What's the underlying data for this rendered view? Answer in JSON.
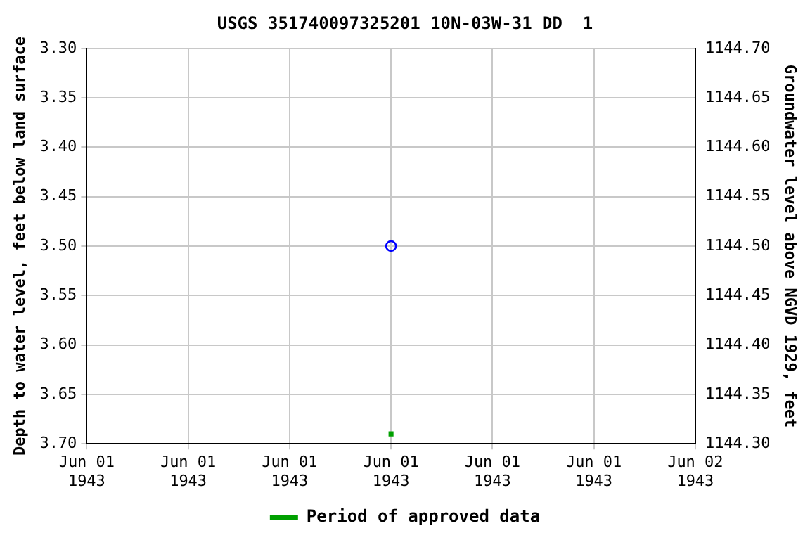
{
  "chart_data": {
    "type": "scatter",
    "title": "USGS 351740097325201 10N-03W-31 DD  1",
    "ylabel": "Depth to water level, feet below land surface",
    "y2label": "Groundwater level above NGVD 1929, feet",
    "xlim": [
      "1943-06-01T00:00",
      "1943-06-02T00:00"
    ],
    "xticks": [
      {
        "value": "1943-06-01T00:00",
        "label": "Jun 01 1943"
      },
      {
        "value": "1943-06-01T04:00",
        "label": "Jun 01 1943"
      },
      {
        "value": "1943-06-01T08:00",
        "label": "Jun 01 1943"
      },
      {
        "value": "1943-06-01T12:00",
        "label": "Jun 01 1943"
      },
      {
        "value": "1943-06-01T16:00",
        "label": "Jun 01 1943"
      },
      {
        "value": "1943-06-01T20:00",
        "label": "Jun 01 1943"
      },
      {
        "value": "1943-06-02T00:00",
        "label": "Jun 02 1943"
      }
    ],
    "ylim": [
      3.7,
      3.3
    ],
    "yticks": [
      {
        "value": 3.3,
        "label": "3.30"
      },
      {
        "value": 3.35,
        "label": "3.35"
      },
      {
        "value": 3.4,
        "label": "3.40"
      },
      {
        "value": 3.45,
        "label": "3.45"
      },
      {
        "value": 3.5,
        "label": "3.50"
      },
      {
        "value": 3.55,
        "label": "3.55"
      },
      {
        "value": 3.6,
        "label": "3.60"
      },
      {
        "value": 3.65,
        "label": "3.65"
      },
      {
        "value": 3.7,
        "label": "3.70"
      }
    ],
    "y2lim": [
      1144.3,
      1144.7
    ],
    "y2ticks": [
      {
        "value": 1144.3,
        "label": "1144.30"
      },
      {
        "value": 1144.35,
        "label": "1144.35"
      },
      {
        "value": 1144.4,
        "label": "1144.40"
      },
      {
        "value": 1144.45,
        "label": "1144.45"
      },
      {
        "value": 1144.5,
        "label": "1144.50"
      },
      {
        "value": 1144.55,
        "label": "1144.55"
      },
      {
        "value": 1144.6,
        "label": "1144.60"
      },
      {
        "value": 1144.65,
        "label": "1144.65"
      },
      {
        "value": 1144.7,
        "label": "1144.70"
      }
    ],
    "grid": true,
    "legend": "bottom",
    "series": [
      {
        "color": "#0000ff",
        "marker": "circle",
        "x": [
          "1943-06-01T12:00"
        ],
        "values": [
          3.5
        ]
      },
      {
        "name": "Period of approved data",
        "color": "#00a000",
        "marker": "square",
        "x": [
          "1943-06-01T12:00"
        ],
        "values": [
          3.69
        ]
      }
    ]
  }
}
